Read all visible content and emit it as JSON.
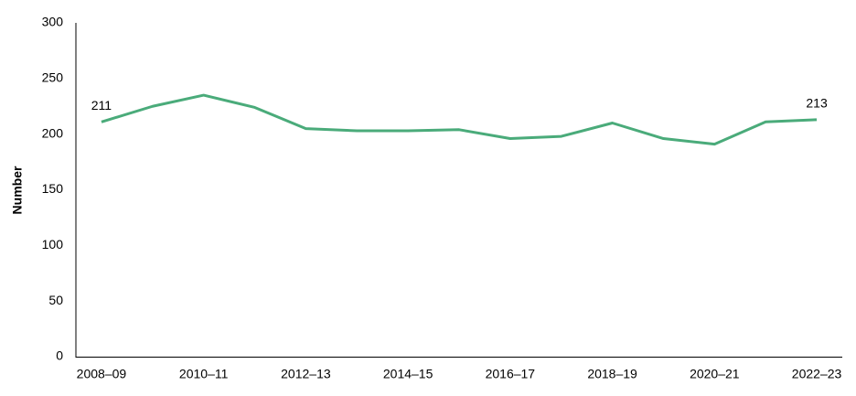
{
  "chart_data": {
    "type": "line",
    "y_label": "Number",
    "categories": [
      "2008–09",
      null,
      "2010–11",
      null,
      "2012–13",
      null,
      "2014–15",
      null,
      "2016–17",
      null,
      "2018–19",
      null,
      "2020–21",
      null,
      "2022–23"
    ],
    "series": [
      {
        "color": "#4aab7a",
        "values": [
          211,
          225,
          235,
          224,
          205,
          203,
          203,
          204,
          196,
          198,
          210,
          196,
          191,
          211,
          213
        ],
        "value_labels": [
          "211",
          null,
          null,
          null,
          null,
          null,
          null,
          null,
          null,
          null,
          null,
          null,
          null,
          null,
          "213"
        ]
      }
    ],
    "ylim": [
      0,
      300
    ],
    "yticks": [
      0,
      50,
      100,
      150,
      200,
      250,
      300
    ],
    "grid": false
  }
}
